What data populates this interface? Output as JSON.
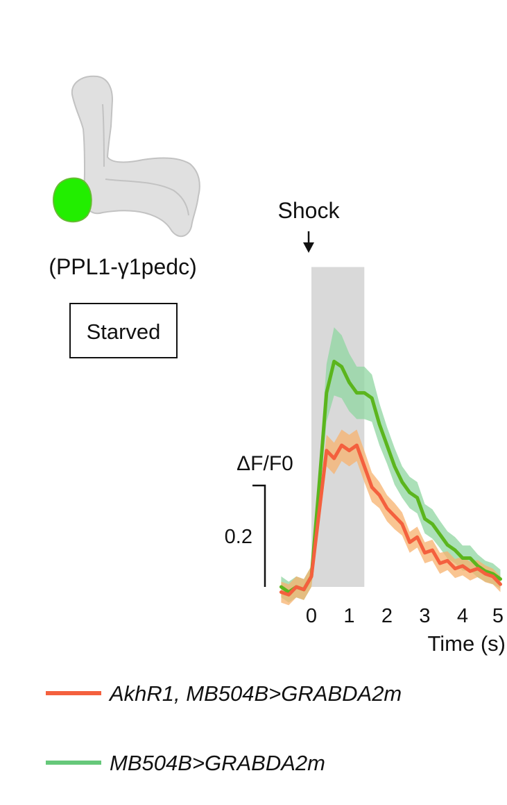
{
  "colors": {
    "series_1_line": "#f4603e",
    "series_1_band": "#f7b26d",
    "series_2_line": "#5bb51d",
    "series_2_band": "#8fd6a0",
    "legend_green": "#66c87a",
    "stimulus_shade": "#d9d9d9",
    "brain_fill": "#e0e0e0",
    "brain_stroke": "#c2c2c2",
    "region_fill": "#22ee00",
    "region_stroke": "#66bb33"
  },
  "illustration": {
    "region_label": "(PPL1-γ1pedc)",
    "condition_label": "Starved"
  },
  "chart_data": {
    "type": "line",
    "stimulus_label": "Shock",
    "stimulus_window": [
      0,
      1.4
    ],
    "xlabel": "Time (s)",
    "x_ticks": [
      0,
      1,
      2,
      3,
      4,
      5
    ],
    "xlim": [
      -0.8,
      5
    ],
    "ylabel": "ΔF/F0",
    "scale_bar": {
      "value": 0.2,
      "label": "0.2"
    },
    "ylim": [
      -0.02,
      0.61
    ],
    "x": [
      -0.8,
      -0.6,
      -0.4,
      -0.2,
      0,
      0.2,
      0.4,
      0.6,
      0.8,
      1,
      1.2,
      1.4,
      1.6,
      1.8,
      2,
      2.2,
      2.4,
      2.6,
      2.8,
      3,
      3.2,
      3.4,
      3.6,
      3.8,
      4,
      4.2,
      4.4,
      4.6,
      4.8,
      5
    ],
    "series": [
      {
        "name": "AkhR1, MB504B>GRABDA2m",
        "values": [
          -0.01,
          -0.015,
          0.0,
          -0.005,
          0.02,
          0.14,
          0.26,
          0.245,
          0.27,
          0.26,
          0.27,
          0.23,
          0.19,
          0.175,
          0.15,
          0.135,
          0.12,
          0.085,
          0.095,
          0.065,
          0.07,
          0.045,
          0.05,
          0.035,
          0.04,
          0.03,
          0.035,
          0.025,
          0.02,
          0.005
        ],
        "error": [
          0.02,
          0.02,
          0.02,
          0.02,
          0.02,
          0.025,
          0.03,
          0.03,
          0.03,
          0.03,
          0.03,
          0.03,
          0.028,
          0.025,
          0.025,
          0.025,
          0.022,
          0.02,
          0.02,
          0.02,
          0.02,
          0.02,
          0.018,
          0.018,
          0.018,
          0.018,
          0.016,
          0.016,
          0.015,
          0.015
        ]
      },
      {
        "name": "MB504B>GRABDA2m",
        "values": [
          0.0,
          -0.01,
          0.0,
          -0.005,
          0.02,
          0.19,
          0.37,
          0.43,
          0.42,
          0.39,
          0.37,
          0.37,
          0.36,
          0.31,
          0.27,
          0.23,
          0.2,
          0.18,
          0.17,
          0.13,
          0.12,
          0.1,
          0.08,
          0.07,
          0.055,
          0.055,
          0.04,
          0.03,
          0.025,
          0.015
        ],
        "error": [
          0.02,
          0.02,
          0.02,
          0.02,
          0.02,
          0.035,
          0.055,
          0.065,
          0.06,
          0.055,
          0.05,
          0.05,
          0.045,
          0.04,
          0.035,
          0.035,
          0.03,
          0.03,
          0.03,
          0.028,
          0.028,
          0.026,
          0.026,
          0.025,
          0.024,
          0.024,
          0.022,
          0.02,
          0.02,
          0.018
        ]
      }
    ]
  }
}
